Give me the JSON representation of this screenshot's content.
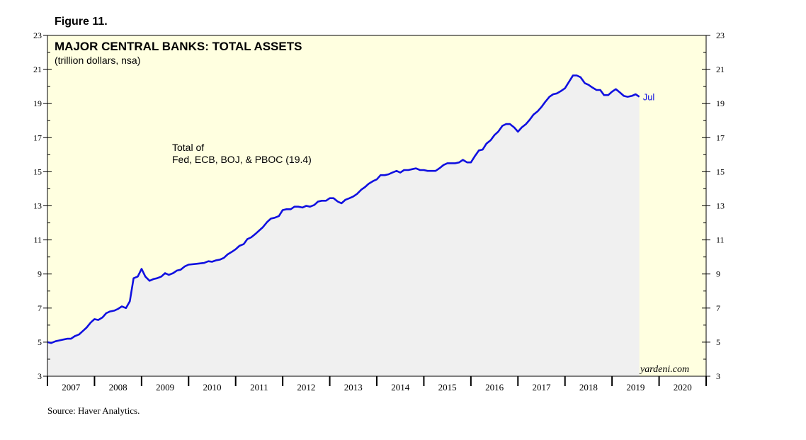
{
  "figure_label": "Figure 11.",
  "source": "Source: Haver Analytics.",
  "watermark": "yardeni.com",
  "colors": {
    "background": "#ffffe0",
    "area_fill": "#f0f0f0",
    "line": "#1010e0",
    "axis": "#000000"
  },
  "chart_data": {
    "type": "area",
    "title": "MAJOR CENTRAL BANKS: TOTAL ASSETS",
    "subtitle": "(trillion dollars, nsa)",
    "annotation_line1": "Total of",
    "annotation_line2": "Fed, ECB, BOJ, & PBOC (19.4)",
    "end_label": "Jul",
    "xlim": [
      2007.0,
      2021.0
    ],
    "ylim": [
      3,
      23
    ],
    "y_ticks": [
      3,
      5,
      7,
      9,
      11,
      13,
      15,
      17,
      19,
      21,
      23
    ],
    "y_tick_labels": [
      "3",
      "5",
      "7",
      "9",
      "11",
      "13",
      "15",
      "17",
      "19",
      "21",
      "23"
    ],
    "x_tick_labels": [
      "2007",
      "2008",
      "2009",
      "2010",
      "2011",
      "2012",
      "2013",
      "2014",
      "2015",
      "2016",
      "2017",
      "2018",
      "2019",
      "2020"
    ],
    "series": [
      {
        "name": "Total of Fed, ECB, BOJ, & PBOC",
        "points": [
          [
            2007.0,
            5.0
          ],
          [
            2007.08,
            4.95
          ],
          [
            2007.17,
            5.05
          ],
          [
            2007.25,
            5.1
          ],
          [
            2007.33,
            5.15
          ],
          [
            2007.42,
            5.2
          ],
          [
            2007.5,
            5.2
          ],
          [
            2007.58,
            5.35
          ],
          [
            2007.67,
            5.45
          ],
          [
            2007.75,
            5.65
          ],
          [
            2007.83,
            5.85
          ],
          [
            2007.92,
            6.15
          ],
          [
            2008.0,
            6.35
          ],
          [
            2008.08,
            6.3
          ],
          [
            2008.17,
            6.45
          ],
          [
            2008.25,
            6.7
          ],
          [
            2008.33,
            6.8
          ],
          [
            2008.42,
            6.85
          ],
          [
            2008.5,
            6.95
          ],
          [
            2008.58,
            7.1
          ],
          [
            2008.67,
            7.0
          ],
          [
            2008.75,
            7.4
          ],
          [
            2008.83,
            8.75
          ],
          [
            2008.92,
            8.85
          ],
          [
            2009.0,
            9.3
          ],
          [
            2009.08,
            8.85
          ],
          [
            2009.17,
            8.6
          ],
          [
            2009.25,
            8.7
          ],
          [
            2009.33,
            8.75
          ],
          [
            2009.42,
            8.85
          ],
          [
            2009.5,
            9.05
          ],
          [
            2009.58,
            8.95
          ],
          [
            2009.67,
            9.05
          ],
          [
            2009.75,
            9.2
          ],
          [
            2009.83,
            9.25
          ],
          [
            2009.92,
            9.45
          ],
          [
            2010.0,
            9.55
          ],
          [
            2010.17,
            9.6
          ],
          [
            2010.33,
            9.65
          ],
          [
            2010.42,
            9.75
          ],
          [
            2010.5,
            9.72
          ],
          [
            2010.58,
            9.8
          ],
          [
            2010.67,
            9.85
          ],
          [
            2010.75,
            9.95
          ],
          [
            2010.83,
            10.15
          ],
          [
            2010.92,
            10.3
          ],
          [
            2011.0,
            10.45
          ],
          [
            2011.08,
            10.65
          ],
          [
            2011.17,
            10.75
          ],
          [
            2011.25,
            11.05
          ],
          [
            2011.33,
            11.15
          ],
          [
            2011.42,
            11.35
          ],
          [
            2011.5,
            11.55
          ],
          [
            2011.58,
            11.75
          ],
          [
            2011.67,
            12.05
          ],
          [
            2011.75,
            12.25
          ],
          [
            2011.83,
            12.3
          ],
          [
            2011.92,
            12.4
          ],
          [
            2012.0,
            12.75
          ],
          [
            2012.08,
            12.8
          ],
          [
            2012.17,
            12.8
          ],
          [
            2012.25,
            12.95
          ],
          [
            2012.33,
            12.95
          ],
          [
            2012.42,
            12.9
          ],
          [
            2012.5,
            13.0
          ],
          [
            2012.58,
            12.95
          ],
          [
            2012.67,
            13.05
          ],
          [
            2012.75,
            13.25
          ],
          [
            2012.83,
            13.3
          ],
          [
            2012.92,
            13.3
          ],
          [
            2013.0,
            13.45
          ],
          [
            2013.08,
            13.45
          ],
          [
            2013.17,
            13.25
          ],
          [
            2013.25,
            13.15
          ],
          [
            2013.33,
            13.35
          ],
          [
            2013.42,
            13.45
          ],
          [
            2013.5,
            13.55
          ],
          [
            2013.58,
            13.7
          ],
          [
            2013.67,
            13.95
          ],
          [
            2013.75,
            14.1
          ],
          [
            2013.83,
            14.3
          ],
          [
            2013.92,
            14.45
          ],
          [
            2014.0,
            14.55
          ],
          [
            2014.08,
            14.8
          ],
          [
            2014.17,
            14.8
          ],
          [
            2014.25,
            14.85
          ],
          [
            2014.33,
            14.95
          ],
          [
            2014.42,
            15.05
          ],
          [
            2014.5,
            14.95
          ],
          [
            2014.58,
            15.1
          ],
          [
            2014.67,
            15.1
          ],
          [
            2014.75,
            15.15
          ],
          [
            2014.83,
            15.2
          ],
          [
            2014.92,
            15.1
          ],
          [
            2015.0,
            15.1
          ],
          [
            2015.08,
            15.05
          ],
          [
            2015.17,
            15.05
          ],
          [
            2015.25,
            15.05
          ],
          [
            2015.33,
            15.2
          ],
          [
            2015.42,
            15.4
          ],
          [
            2015.5,
            15.5
          ],
          [
            2015.58,
            15.5
          ],
          [
            2015.67,
            15.5
          ],
          [
            2015.75,
            15.55
          ],
          [
            2015.83,
            15.7
          ],
          [
            2015.92,
            15.55
          ],
          [
            2016.0,
            15.55
          ],
          [
            2016.08,
            15.9
          ],
          [
            2016.17,
            16.25
          ],
          [
            2016.25,
            16.3
          ],
          [
            2016.33,
            16.65
          ],
          [
            2016.42,
            16.85
          ],
          [
            2016.5,
            17.15
          ],
          [
            2016.58,
            17.35
          ],
          [
            2016.67,
            17.7
          ],
          [
            2016.75,
            17.8
          ],
          [
            2016.83,
            17.8
          ],
          [
            2016.92,
            17.6
          ],
          [
            2017.0,
            17.35
          ],
          [
            2017.08,
            17.6
          ],
          [
            2017.17,
            17.8
          ],
          [
            2017.25,
            18.05
          ],
          [
            2017.33,
            18.35
          ],
          [
            2017.42,
            18.55
          ],
          [
            2017.5,
            18.8
          ],
          [
            2017.58,
            19.1
          ],
          [
            2017.67,
            19.4
          ],
          [
            2017.75,
            19.55
          ],
          [
            2017.83,
            19.6
          ],
          [
            2017.92,
            19.75
          ],
          [
            2018.0,
            19.9
          ],
          [
            2018.08,
            20.25
          ],
          [
            2018.17,
            20.65
          ],
          [
            2018.25,
            20.65
          ],
          [
            2018.33,
            20.55
          ],
          [
            2018.42,
            20.2
          ],
          [
            2018.5,
            20.1
          ],
          [
            2018.58,
            19.95
          ],
          [
            2018.67,
            19.8
          ],
          [
            2018.75,
            19.8
          ],
          [
            2018.83,
            19.5
          ],
          [
            2018.92,
            19.5
          ],
          [
            2019.0,
            19.7
          ],
          [
            2019.08,
            19.85
          ],
          [
            2019.17,
            19.65
          ],
          [
            2019.25,
            19.45
          ],
          [
            2019.33,
            19.4
          ],
          [
            2019.42,
            19.45
          ],
          [
            2019.5,
            19.55
          ],
          [
            2019.58,
            19.4
          ]
        ]
      }
    ]
  }
}
